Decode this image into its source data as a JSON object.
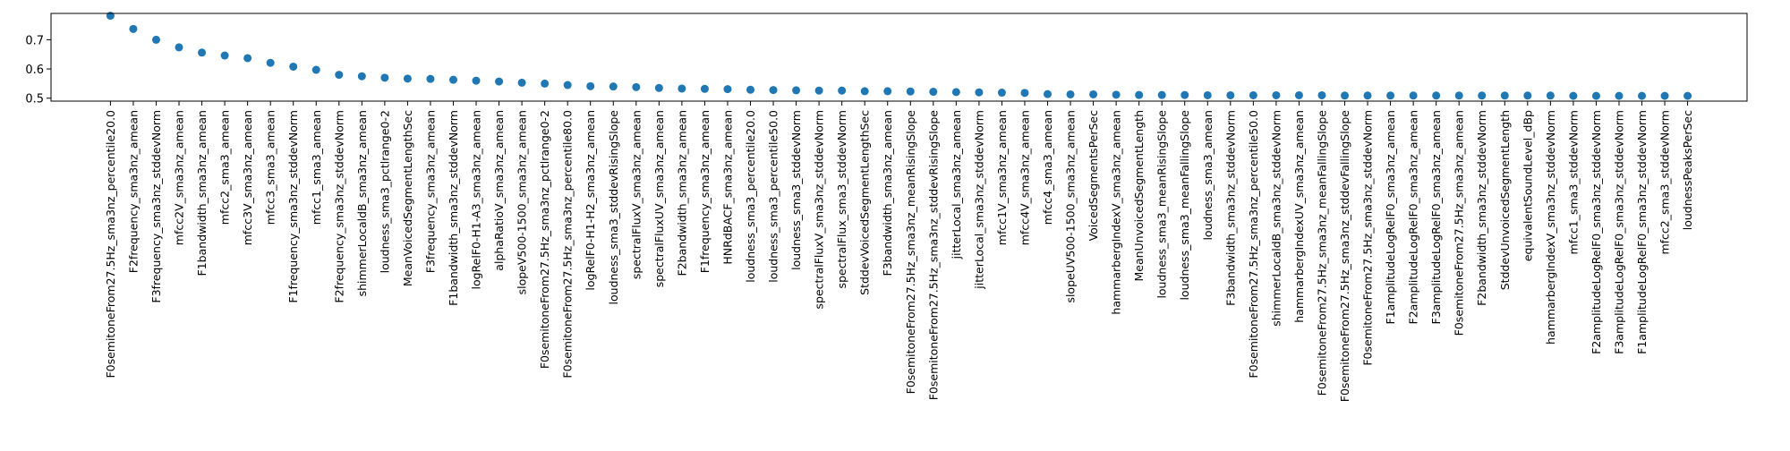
{
  "chart_data": {
    "type": "scatter",
    "title": "",
    "xlabel": "",
    "ylabel": "",
    "ylim": [
      0.49,
      0.79
    ],
    "yticks": [
      0.5,
      0.6,
      0.7
    ],
    "grid": false,
    "legend": "none",
    "marker_color": "#1f77b4",
    "categories": [
      "F0semitoneFrom27.5Hz_sma3nz_percentile20.0",
      "F2frequency_sma3nz_amean",
      "F3frequency_sma3nz_stddevNorm",
      "mfcc2V_sma3nz_amean",
      "F1bandwidth_sma3nz_amean",
      "mfcc2_sma3_amean",
      "mfcc3V_sma3nz_amean",
      "mfcc3_sma3_amean",
      "F1frequency_sma3nz_stddevNorm",
      "mfcc1_sma3_amean",
      "F2frequency_sma3nz_stddevNorm",
      "shimmerLocaldB_sma3nz_amean",
      "loudness_sma3_pctlrange0-2",
      "MeanVoicedSegmentLengthSec",
      "F3frequency_sma3nz_amean",
      "F1bandwidth_sma3nz_stddevNorm",
      "logRelF0-H1-A3_sma3nz_amean",
      "alphaRatioV_sma3nz_amean",
      "slopeV500-1500_sma3nz_amean",
      "F0semitoneFrom27.5Hz_sma3nz_pctlrange0-2",
      "F0semitoneFrom27.5Hz_sma3nz_percentile80.0",
      "logRelF0-H1-H2_sma3nz_amean",
      "loudness_sma3_stddevRisingSlope",
      "spectralFluxV_sma3nz_amean",
      "spectralFluxUV_sma3nz_amean",
      "F2bandwidth_sma3nz_amean",
      "F1frequency_sma3nz_amean",
      "HNRdBACF_sma3nz_amean",
      "loudness_sma3_percentile20.0",
      "loudness_sma3_percentile50.0",
      "loudness_sma3_stddevNorm",
      "spectralFluxV_sma3nz_stddevNorm",
      "spectralFlux_sma3_stddevNorm",
      "StddevVoicedSegmentLengthSec",
      "F3bandwidth_sma3nz_amean",
      "F0semitoneFrom27.5Hz_sma3nz_meanRisingSlope",
      "F0semitoneFrom27.5Hz_sma3nz_stddevRisingSlope",
      "jitterLocal_sma3nz_amean",
      "jitterLocal_sma3nz_stddevNorm",
      "mfcc1V_sma3nz_amean",
      "mfcc4V_sma3nz_amean",
      "mfcc4_sma3_amean",
      "slopeUV500-1500_sma3nz_amean",
      "VoicedSegmentsPerSec",
      "hammarbergIndexV_sma3nz_amean",
      "MeanUnvoicedSegmentLength",
      "loudness_sma3_meanRisingSlope",
      "loudness_sma3_meanFallingSlope",
      "loudness_sma3_amean",
      "F3bandwidth_sma3nz_stddevNorm",
      "F0semitoneFrom27.5Hz_sma3nz_percentile50.0",
      "shimmerLocaldB_sma3nz_stddevNorm",
      "hammarbergIndexUV_sma3nz_amean",
      "F0semitoneFrom27.5Hz_sma3nz_meanFallingSlope",
      "F0semitoneFrom27.5Hz_sma3nz_stddevFallingSlope",
      "F0semitoneFrom27.5Hz_sma3nz_stddevNorm",
      "F1amplitudeLogRelF0_sma3nz_amean",
      "F2amplitudeLogRelF0_sma3nz_amean",
      "F3amplitudeLogRelF0_sma3nz_amean",
      "F0semitoneFrom27.5Hz_sma3nz_amean",
      "F2bandwidth_sma3nz_stddevNorm",
      "StddevUnvoicedSegmentLength",
      "equivalentSoundLevel_dBp",
      "hammarbergIndexV_sma3nz_stddevNorm",
      "mfcc1_sma3_stddevNorm",
      "F2amplitudeLogRelF0_sma3nz_stddevNorm",
      "F3amplitudeLogRelF0_sma3nz_stddevNorm",
      "F1amplitudeLogRelF0_sma3nz_stddevNorm",
      "mfcc2_sma3_stddevNorm",
      "loudnessPeaksPerSec"
    ],
    "values": [
      0.782,
      0.737,
      0.7,
      0.674,
      0.656,
      0.646,
      0.637,
      0.621,
      0.608,
      0.597,
      0.58,
      0.575,
      0.57,
      0.567,
      0.566,
      0.563,
      0.56,
      0.557,
      0.553,
      0.55,
      0.545,
      0.541,
      0.54,
      0.538,
      0.535,
      0.533,
      0.532,
      0.531,
      0.529,
      0.528,
      0.527,
      0.526,
      0.526,
      0.524,
      0.524,
      0.523,
      0.522,
      0.521,
      0.52,
      0.519,
      0.518,
      0.514,
      0.513,
      0.513,
      0.512,
      0.511,
      0.511,
      0.511,
      0.51,
      0.51,
      0.51,
      0.51,
      0.51,
      0.51,
      0.509,
      0.509,
      0.509,
      0.509,
      0.509,
      0.509,
      0.509,
      0.509,
      0.509,
      0.509,
      0.508,
      0.508,
      0.508,
      0.508,
      0.508,
      0.508
    ]
  }
}
